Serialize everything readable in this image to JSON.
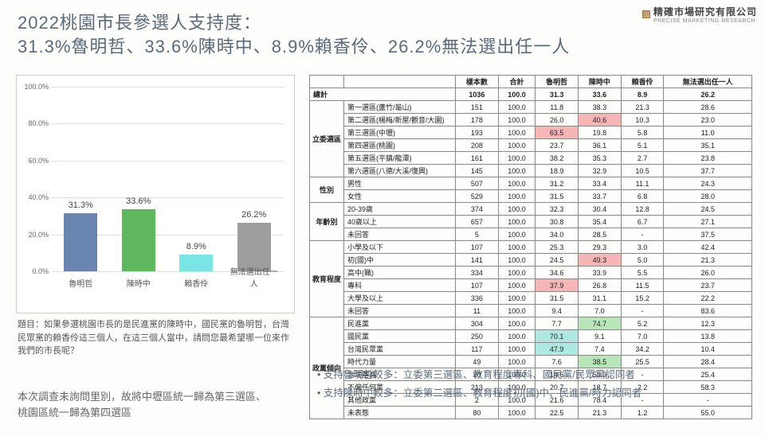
{
  "logo": {
    "cn": "精確市場研究有限公司",
    "en": "PRECISE MARKETING RESEARCH"
  },
  "title_line1": "2022桃園市長參選人支持度：",
  "title_line2": "31.3%魯明哲、33.6%陳時中、8.9%賴香伶、26.2%無法選出任一人",
  "chart": {
    "ymax": 100,
    "categories": [
      "魯明哲",
      "陳時中",
      "賴香伶",
      "無法選出任一人"
    ],
    "values": [
      31.3,
      33.6,
      8.9,
      26.2
    ],
    "bar_colors": [
      "#6a86b0",
      "#5fb760",
      "#7be5e5",
      "#9e9e9e"
    ],
    "yticks": [
      0,
      20,
      40,
      60,
      80,
      100
    ],
    "label_suffix": "%"
  },
  "prompt": "題目：如果參選桃園市長的是民進黨的陳時中，國民黨的魯明哲，台灣民眾黨的賴香伶這三個人，在這三個人當中，請問您最希望哪一位來作我們的市長呢？",
  "footnote_line1": "本次調查未詢問里別，故將中壢區統一歸為第三選區、",
  "footnote_line2": "桃園區統一歸為第四選區",
  "table": {
    "headers": [
      "",
      "",
      "樣本數",
      "合計",
      "魯明哲",
      "陳時中",
      "賴香伶",
      "無法選出任一人"
    ],
    "total_row": {
      "label": "總計",
      "cells": [
        "1036",
        "100.0",
        "31.3",
        "33.6",
        "8.9",
        "26.2"
      ]
    },
    "groups": [
      {
        "name": "立委選區",
        "rows": [
          {
            "label": "第一選區(蘆竹/龜山)",
            "cells": [
              "151",
              "100.0",
              "11.8",
              "38.3",
              "21.3",
              "28.6"
            ]
          },
          {
            "label": "第二選區(楊梅/新屋/觀音/大園)",
            "cells": [
              "178",
              "100.0",
              "26.0",
              "40.6",
              "10.3",
              "23.0"
            ],
            "hl": {
              "3": "pink"
            }
          },
          {
            "label": "第三選區(中壢)",
            "cells": [
              "193",
              "100.0",
              "63.5",
              "19.8",
              "5.8",
              "11.0"
            ],
            "hl": {
              "2": "pink"
            }
          },
          {
            "label": "第四選區(桃園)",
            "cells": [
              "208",
              "100.0",
              "23.7",
              "36.1",
              "5.1",
              "35.1"
            ]
          },
          {
            "label": "第五選區(平鎮/龍潭)",
            "cells": [
              "161",
              "100.0",
              "38.2",
              "35.3",
              "2.7",
              "23.8"
            ]
          },
          {
            "label": "第六選區(八德/大溪/復興)",
            "cells": [
              "145",
              "100.0",
              "18.9",
              "32.9",
              "10.5",
              "37.7"
            ]
          }
        ]
      },
      {
        "name": "性別",
        "rows": [
          {
            "label": "男性",
            "cells": [
              "507",
              "100.0",
              "31.2",
              "33.4",
              "11.1",
              "24.3"
            ]
          },
          {
            "label": "女性",
            "cells": [
              "529",
              "100.0",
              "31.5",
              "33.7",
              "6.8",
              "28.0"
            ]
          }
        ]
      },
      {
        "name": "年齡別",
        "rows": [
          {
            "label": "20-39歲",
            "cells": [
              "374",
              "100.0",
              "32.3",
              "30.4",
              "12.8",
              "24.5"
            ]
          },
          {
            "label": "40歲以上",
            "cells": [
              "657",
              "100.0",
              "30.8",
              "35.4",
              "6.7",
              "27.1"
            ]
          },
          {
            "label": "未回答",
            "cells": [
              "5",
              "100.0",
              "34.0",
              "28.5",
              "-",
              "37.5"
            ]
          }
        ]
      },
      {
        "name": "教育程度",
        "rows": [
          {
            "label": "小學及以下",
            "cells": [
              "107",
              "100.0",
              "25.3",
              "29.3",
              "3.0",
              "42.4"
            ]
          },
          {
            "label": "初(國)中",
            "cells": [
              "141",
              "100.0",
              "24.5",
              "49.3",
              "5.0",
              "21.3"
            ],
            "hl": {
              "3": "pink"
            }
          },
          {
            "label": "高中(職)",
            "cells": [
              "334",
              "100.0",
              "34.6",
              "33.9",
              "5.5",
              "26.0"
            ]
          },
          {
            "label": "專科",
            "cells": [
              "107",
              "100.0",
              "37.9",
              "26.8",
              "11.5",
              "23.7"
            ],
            "hl": {
              "2": "pink"
            }
          },
          {
            "label": "大學及以上",
            "cells": [
              "336",
              "100.0",
              "31.5",
              "31.1",
              "15.2",
              "22.2"
            ]
          },
          {
            "label": "未回答",
            "cells": [
              "11",
              "100.0",
              "9.4",
              "7.0",
              "-",
              "83.6"
            ]
          }
        ]
      },
      {
        "name": "政黨傾向",
        "rows": [
          {
            "label": "民進黨",
            "cells": [
              "304",
              "100.0",
              "7.7",
              "74.7",
              "5.2",
              "12.3"
            ],
            "hl": {
              "3": "green"
            }
          },
          {
            "label": "國民黨",
            "cells": [
              "250",
              "100.0",
              "70.1",
              "9.1",
              "7.0",
              "13.8"
            ],
            "hl": {
              "2": "cyan"
            }
          },
          {
            "label": "台灣民眾黨",
            "cells": [
              "117",
              "100.0",
              "47.9",
              "7.4",
              "34.2",
              "10.4"
            ],
            "hl": {
              "2": "cyan"
            }
          },
          {
            "label": "時代力量",
            "cells": [
              "49",
              "100.0",
              "7.6",
              "38.5",
              "25.5",
              "28.4"
            ],
            "hl": {
              "3": "green"
            }
          },
          {
            "label": "台灣基進",
            "cells": [
              "20",
              "100.0",
              "14.6",
              "59.9",
              "-",
              "25.4"
            ]
          },
          {
            "label": "不偏任何黨",
            "cells": [
              "213",
              "100.0",
              "20.7",
              "18.7",
              "2.2",
              "58.3"
            ]
          },
          {
            "label": "其他政黨",
            "cells": [
              "2",
              "100.0",
              "21.6",
              "78.4",
              "-",
              "-"
            ]
          },
          {
            "label": "未表態",
            "cells": [
              "80",
              "100.0",
              "22.5",
              "21.3",
              "1.2",
              "55.0"
            ]
          }
        ]
      }
    ]
  },
  "bullets": [
    "支持魯明哲較多：立委第三選區、教育程度專科、國民黨/民眾黨認同者",
    "支持陳時中較多：立委第二選區、教育程度初(國)中、民進黨/時力認同者"
  ]
}
